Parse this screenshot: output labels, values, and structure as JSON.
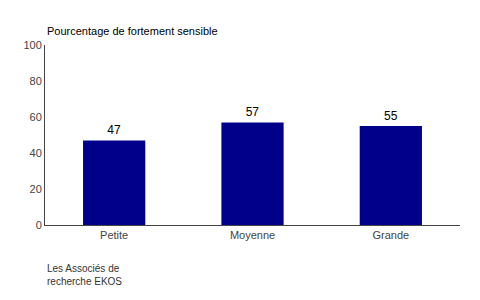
{
  "chart_data": {
    "type": "bar",
    "ylabel": "Pourcentage de fortement sensible",
    "categories": [
      "Petite",
      "Moyenne",
      "Grande"
    ],
    "values": [
      47,
      57,
      55
    ],
    "color": "#00008B",
    "ylim": [
      0,
      100
    ],
    "yticks": [
      0,
      20,
      40,
      60,
      80,
      100
    ],
    "grid": false,
    "data_labels": true,
    "annotations": [
      "Les Associés de\nrecherche EKOS"
    ]
  }
}
